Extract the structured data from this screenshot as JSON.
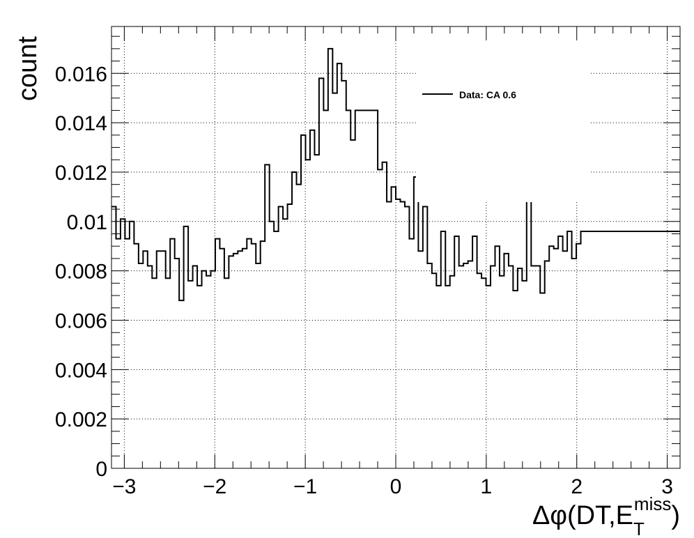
{
  "chart_data": {
    "type": "step",
    "title": "",
    "xlabel_parts": {
      "prefix": "Δφ(DT,E",
      "sup": "miss",
      "sub": "T",
      "suffix": ")"
    },
    "ylabel": "count",
    "xlim": [
      -3.1416,
      3.1416
    ],
    "ylim": [
      0,
      0.0179
    ],
    "x_ticks": [
      -3,
      -2,
      -1,
      0,
      1,
      2,
      3
    ],
    "x_tick_labels": [
      "−3",
      "−2",
      "−1",
      "0",
      "1",
      "2",
      "3"
    ],
    "y_ticks": [
      0,
      0.002,
      0.004,
      0.006,
      0.008,
      0.01,
      0.012,
      0.014,
      0.016
    ],
    "y_tick_labels": [
      "0",
      "0.002",
      "0.004",
      "0.006",
      "0.008",
      "0.01",
      "0.012",
      "0.014",
      "0.016"
    ],
    "grid": true,
    "legend_position": "top-right",
    "series": [
      {
        "name": "Data: CA 0.6",
        "color": "#000000",
        "bin_count": 126,
        "values": [
          0.0106,
          0.0093,
          0.0101,
          0.0093,
          0.01,
          0.0091,
          0.0083,
          0.0088,
          0.0082,
          0.0077,
          0.0088,
          0.0088,
          0.0077,
          0.0093,
          0.0085,
          0.0068,
          0.0098,
          0.0076,
          0.0082,
          0.0074,
          0.008,
          0.0078,
          0.008,
          0.0093,
          0.0089,
          0.0077,
          0.0086,
          0.0087,
          0.0088,
          0.0089,
          0.0093,
          0.0091,
          0.0083,
          0.0092,
          0.0123,
          0.01,
          0.0096,
          0.0106,
          0.0101,
          0.0107,
          0.012,
          0.0115,
          0.0135,
          0.0125,
          0.0137,
          0.0127,
          0.0158,
          0.0145,
          0.017,
          0.0152,
          0.0164,
          0.0157,
          0.0145,
          0.0133,
          0.0145,
          0.0145,
          0.0145,
          0.0145,
          0.0145,
          0.0121,
          0.0124,
          0.0108,
          0.0114,
          0.0109,
          0.0108,
          0.0106,
          0.0093,
          0.0118,
          0.0088,
          0.0106,
          0.0083,
          0.0079,
          0.0074,
          0.0096,
          0.0074,
          0.0078,
          0.0094,
          0.0082,
          0.0083,
          0.0084,
          0.0094,
          0.0079,
          0.0077,
          0.0074,
          0.0082,
          0.009,
          0.0078,
          0.0087,
          0.0082,
          0.0072,
          0.0081,
          0.0076,
          0.0111,
          0.0082,
          0.0082,
          0.0071,
          0.0084,
          0.009,
          0.0089,
          0.0094,
          0.0088,
          0.0096,
          0.0085,
          0.0091,
          0.0096,
          0.0096,
          0.0096,
          0.0096,
          0.0096,
          0.0096,
          0.0096,
          0.0096,
          0.0096,
          0.0096,
          0.0096,
          0.0096,
          0.0096,
          0.0096,
          0.0096,
          0.0096,
          0.0096,
          0.0096,
          0.0096,
          0.0096,
          0.0096,
          0.0096
        ]
      }
    ]
  }
}
